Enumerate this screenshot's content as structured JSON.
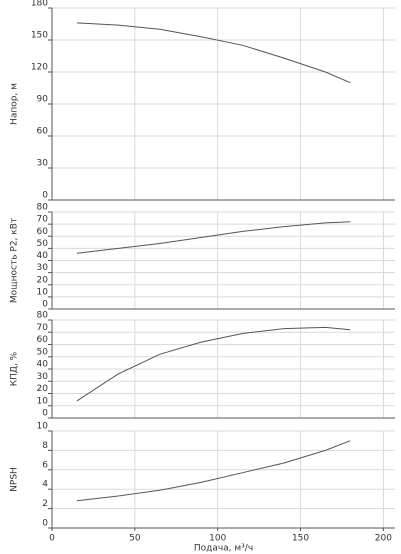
{
  "chart_data": [
    {
      "type": "line",
      "ylabel": "Напор, м",
      "x": [
        15,
        40,
        65,
        90,
        115,
        140,
        165,
        180
      ],
      "series": [
        {
          "color": "#555555",
          "values": [
            166,
            164,
            160,
            153,
            145,
            133,
            120,
            110
          ]
        }
      ],
      "xlim": [
        0,
        207
      ],
      "xticks": [
        0,
        50,
        100,
        150,
        200
      ],
      "ylim": [
        0,
        180
      ],
      "yticks": [
        0,
        30,
        60,
        90,
        120,
        150,
        180
      ],
      "grid": true
    },
    {
      "type": "line",
      "ylabel": "Мощность P2, кВт",
      "x": [
        15,
        40,
        65,
        90,
        115,
        140,
        165,
        180
      ],
      "series": [
        {
          "color": "#555555",
          "values": [
            46,
            50,
            54,
            59,
            64,
            68,
            71,
            72
          ]
        }
      ],
      "xlim": [
        0,
        207
      ],
      "xticks": [
        0,
        50,
        100,
        150,
        200
      ],
      "ylim": [
        0,
        80
      ],
      "yticks": [
        0,
        10,
        20,
        30,
        40,
        50,
        60,
        70,
        80
      ],
      "grid": true
    },
    {
      "type": "line",
      "ylabel": "КПД, %",
      "x": [
        15,
        40,
        65,
        90,
        115,
        140,
        165,
        180
      ],
      "series": [
        {
          "color": "#555555",
          "values": [
            14,
            36,
            52,
            62,
            69,
            73,
            74,
            72
          ]
        }
      ],
      "xlim": [
        0,
        207
      ],
      "xticks": [
        0,
        50,
        100,
        150,
        200
      ],
      "ylim": [
        0,
        80
      ],
      "yticks": [
        0,
        10,
        20,
        30,
        40,
        50,
        60,
        70,
        80
      ],
      "grid": true
    },
    {
      "type": "line",
      "ylabel": "NPSH",
      "xlabel": "Подача, м³/ч",
      "x": [
        15,
        40,
        65,
        90,
        115,
        140,
        165,
        180
      ],
      "series": [
        {
          "color": "#555555",
          "values": [
            2.8,
            3.3,
            3.9,
            4.7,
            5.7,
            6.7,
            8.0,
            9.0
          ]
        }
      ],
      "xlim": [
        0,
        207
      ],
      "xticks": [
        0,
        50,
        100,
        150,
        200
      ],
      "ylim": [
        0,
        10
      ],
      "yticks": [
        0,
        2,
        4,
        6,
        8,
        10
      ],
      "grid": true
    }
  ]
}
